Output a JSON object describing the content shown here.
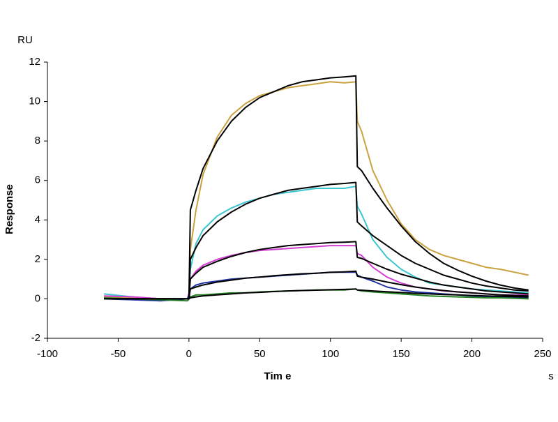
{
  "chart_data": {
    "type": "line",
    "y_unit": "RU",
    "ylabel": "Response",
    "xlabel": "Tim e",
    "x_unit": "s",
    "x": [
      -60,
      -40,
      -20,
      -1,
      0,
      1,
      5,
      10,
      20,
      30,
      40,
      50,
      60,
      70,
      80,
      90,
      100,
      110,
      118,
      119,
      122,
      130,
      140,
      150,
      160,
      170,
      180,
      190,
      200,
      210,
      220,
      230,
      240
    ],
    "series": [
      {
        "color": "#c9a23f",
        "values": [
          0.1,
          0.05,
          -0.05,
          0,
          0,
          2.5,
          4.5,
          6.3,
          8.2,
          9.3,
          9.9,
          10.3,
          10.5,
          10.7,
          10.8,
          10.9,
          11.0,
          10.95,
          11.0,
          9.0,
          8.5,
          6.5,
          5.0,
          3.8,
          3.0,
          2.5,
          2.2,
          2.0,
          1.8,
          1.6,
          1.5,
          1.35,
          1.2
        ]
      },
      {
        "color": "#3cc6d0",
        "values": [
          0.25,
          0.1,
          0.0,
          0,
          0.2,
          1.5,
          2.8,
          3.5,
          4.2,
          4.6,
          4.9,
          5.1,
          5.3,
          5.4,
          5.5,
          5.6,
          5.6,
          5.6,
          5.7,
          4.7,
          4.3,
          3.0,
          2.1,
          1.5,
          1.1,
          0.8,
          0.7,
          0.6,
          0.5,
          0.45,
          0.4,
          0.35,
          0.3
        ]
      },
      {
        "color": "#d23fd2",
        "values": [
          0.15,
          0.1,
          0,
          0,
          0.3,
          1.0,
          1.4,
          1.7,
          2.0,
          2.2,
          2.35,
          2.45,
          2.5,
          2.55,
          2.6,
          2.65,
          2.7,
          2.7,
          2.7,
          2.3,
          2.2,
          1.6,
          1.1,
          0.8,
          0.6,
          0.5,
          0.4,
          0.35,
          0.3,
          0.25,
          0.2,
          0.2,
          0.2
        ]
      },
      {
        "color": "#2232a2",
        "values": [
          0.0,
          -0.05,
          -0.1,
          0,
          0.2,
          0.5,
          0.7,
          0.8,
          0.9,
          1.0,
          1.05,
          1.1,
          1.15,
          1.2,
          1.25,
          1.3,
          1.35,
          1.35,
          1.35,
          1.2,
          1.1,
          0.9,
          0.6,
          0.45,
          0.35,
          0.3,
          0.25,
          0.2,
          0.15,
          0.1,
          0.1,
          0.05,
          0.05
        ]
      },
      {
        "color": "#238023",
        "values": [
          0.05,
          0,
          -0.05,
          -0.1,
          0,
          0.1,
          0.2,
          0.2,
          0.25,
          0.3,
          0.3,
          0.35,
          0.38,
          0.4,
          0.42,
          0.45,
          0.45,
          0.45,
          0.5,
          0.45,
          0.4,
          0.35,
          0.3,
          0.25,
          0.2,
          0.15,
          0.12,
          0.1,
          0.08,
          0.05,
          0.05,
          0.03,
          0.0
        ]
      },
      {
        "color": "#000000",
        "values": [
          0,
          0,
          0,
          0,
          0,
          4.5,
          5.5,
          6.6,
          8.0,
          9.0,
          9.7,
          10.2,
          10.5,
          10.8,
          11.0,
          11.1,
          11.2,
          11.25,
          11.3,
          6.7,
          6.5,
          5.6,
          4.6,
          3.7,
          2.9,
          2.3,
          1.8,
          1.45,
          1.15,
          0.9,
          0.7,
          0.55,
          0.45
        ]
      },
      {
        "color": "#000000",
        "values": [
          0,
          0,
          0,
          0,
          0,
          2.0,
          2.6,
          3.2,
          3.9,
          4.4,
          4.8,
          5.1,
          5.3,
          5.5,
          5.6,
          5.7,
          5.8,
          5.85,
          5.9,
          3.9,
          3.7,
          3.2,
          2.7,
          2.2,
          1.8,
          1.5,
          1.2,
          1.0,
          0.8,
          0.65,
          0.55,
          0.45,
          0.4
        ]
      },
      {
        "color": "#000000",
        "values": [
          0,
          0,
          0,
          0,
          0,
          1.0,
          1.3,
          1.6,
          1.9,
          2.15,
          2.35,
          2.5,
          2.6,
          2.7,
          2.75,
          2.8,
          2.85,
          2.87,
          2.9,
          2.1,
          2.05,
          1.8,
          1.5,
          1.25,
          1.05,
          0.85,
          0.7,
          0.6,
          0.5,
          0.4,
          0.35,
          0.3,
          0.25
        ]
      },
      {
        "color": "#000000",
        "values": [
          0,
          0,
          0,
          0,
          0,
          0.5,
          0.6,
          0.7,
          0.85,
          0.95,
          1.05,
          1.1,
          1.17,
          1.22,
          1.27,
          1.3,
          1.34,
          1.37,
          1.4,
          1.15,
          1.1,
          1.0,
          0.85,
          0.72,
          0.6,
          0.5,
          0.42,
          0.35,
          0.3,
          0.25,
          0.2,
          0.17,
          0.15
        ]
      },
      {
        "color": "#000000",
        "values": [
          0,
          0,
          0,
          0,
          0,
          0.05,
          0.1,
          0.15,
          0.2,
          0.25,
          0.3,
          0.33,
          0.37,
          0.4,
          0.42,
          0.44,
          0.46,
          0.48,
          0.5,
          0.45,
          0.44,
          0.4,
          0.36,
          0.32,
          0.28,
          0.25,
          0.22,
          0.2,
          0.17,
          0.15,
          0.13,
          0.11,
          0.1
        ]
      }
    ],
    "xlim": [
      -100,
      250
    ],
    "xticks": [
      -100,
      -50,
      0,
      50,
      100,
      150,
      200,
      250
    ],
    "ylim": [
      -2,
      12
    ],
    "yticks": [
      -2,
      0,
      2,
      4,
      6,
      8,
      10,
      12
    ]
  }
}
